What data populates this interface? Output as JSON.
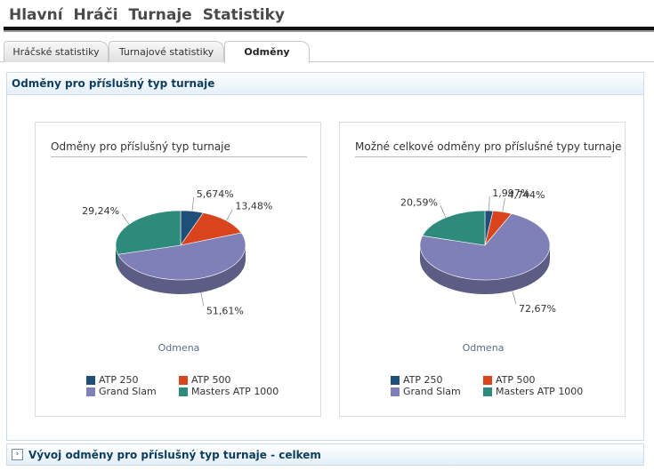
{
  "nav": {
    "items": [
      "Hlavní",
      "Hráči",
      "Turnaje",
      "Statistiky"
    ]
  },
  "tabs": {
    "items": [
      "Hráčské statistiky",
      "Turnajové statistiky",
      "Odměny"
    ],
    "active": "Odměny"
  },
  "panel": {
    "title": "Odměny pro příslušný typ turnaje"
  },
  "colors": {
    "ATP 250": "#1f4e79",
    "ATP 500": "#d9441c",
    "Grand Slam": "#8080b8",
    "Masters ATP 1000": "#2e8b7c"
  },
  "charts": [
    {
      "title": "Odměny pro příslušný typ turnaje",
      "xlabel": "Odmena",
      "legend": [
        "ATP 250",
        "ATP 500",
        "Grand Slam",
        "Masters ATP 1000"
      ]
    },
    {
      "title": "Možné celkové odměny pro příslušné typy turnaje",
      "xlabel": "Odmena",
      "legend": [
        "ATP 250",
        "ATP 500",
        "Grand Slam",
        "Masters ATP 1000"
      ]
    }
  ],
  "chart_data": [
    {
      "type": "pie",
      "title": "Odměny pro příslušný typ turnaje",
      "xlabel": "Odmena",
      "slices": [
        {
          "name": "ATP 250",
          "value": 5.674,
          "label": "5,674%"
        },
        {
          "name": "ATP 500",
          "value": 13.48,
          "label": "13,48%"
        },
        {
          "name": "Grand Slam",
          "value": 51.61,
          "label": "51,61%"
        },
        {
          "name": "Masters ATP 1000",
          "value": 29.24,
          "label": "29,24%"
        }
      ],
      "legend_position": "bottom"
    },
    {
      "type": "pie",
      "title": "Možné celkové odměny pro příslušné typy turnaje",
      "xlabel": "Odmena",
      "slices": [
        {
          "name": "ATP 250",
          "value": 1.997,
          "label": "1,997%"
        },
        {
          "name": "ATP 500",
          "value": 4.744,
          "label": "4,744%"
        },
        {
          "name": "Grand Slam",
          "value": 72.67,
          "label": "72,67%"
        },
        {
          "name": "Masters ATP 1000",
          "value": 20.59,
          "label": "20,59%"
        }
      ],
      "legend_position": "bottom"
    }
  ],
  "section2": {
    "expander": "›",
    "title": "Vývoj odměny pro příslušný typ turnaje - celkem"
  }
}
